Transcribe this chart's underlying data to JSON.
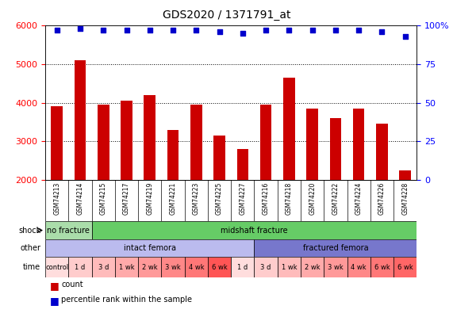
{
  "title": "GDS2020 / 1371791_at",
  "samples": [
    "GSM74213",
    "GSM74214",
    "GSM74215",
    "GSM74217",
    "GSM74219",
    "GSM74221",
    "GSM74223",
    "GSM74225",
    "GSM74227",
    "GSM74216",
    "GSM74218",
    "GSM74220",
    "GSM74222",
    "GSM74224",
    "GSM74226",
    "GSM74228"
  ],
  "bar_values": [
    3900,
    5100,
    3950,
    4050,
    4200,
    3300,
    3950,
    3150,
    2800,
    3950,
    4650,
    3850,
    3600,
    3850,
    3450,
    2250
  ],
  "percentile_values": [
    97,
    98,
    97,
    97,
    97,
    97,
    97,
    96,
    95,
    97,
    97,
    97,
    97,
    97,
    96,
    93
  ],
  "bar_color": "#cc0000",
  "percentile_color": "#0000cc",
  "ymin": 2000,
  "ymax": 6000,
  "yticks": [
    2000,
    3000,
    4000,
    5000,
    6000
  ],
  "y2ticks": [
    0,
    25,
    50,
    75,
    100
  ],
  "y2min": 0,
  "y2max": 100,
  "shock_labels": [
    {
      "text": "no fracture",
      "start": 0,
      "end": 2,
      "color": "#aaddaa"
    },
    {
      "text": "midshaft fracture",
      "start": 2,
      "end": 16,
      "color": "#66cc66"
    }
  ],
  "other_labels": [
    {
      "text": "intact femora",
      "start": 0,
      "end": 9,
      "color": "#bbbbee"
    },
    {
      "text": "fractured femora",
      "start": 9,
      "end": 16,
      "color": "#7777cc"
    }
  ],
  "time_labels": [
    {
      "text": "control",
      "start": 0,
      "end": 1,
      "color": "#ffdddd"
    },
    {
      "text": "1 d",
      "start": 1,
      "end": 2,
      "color": "#ffcccc"
    },
    {
      "text": "3 d",
      "start": 2,
      "end": 3,
      "color": "#ffbbbb"
    },
    {
      "text": "1 wk",
      "start": 3,
      "end": 4,
      "color": "#ffaaaa"
    },
    {
      "text": "2 wk",
      "start": 4,
      "end": 5,
      "color": "#ff9999"
    },
    {
      "text": "3 wk",
      "start": 5,
      "end": 6,
      "color": "#ff8888"
    },
    {
      "text": "4 wk",
      "start": 6,
      "end": 7,
      "color": "#ff7777"
    },
    {
      "text": "6 wk",
      "start": 7,
      "end": 8,
      "color": "#ff5555"
    },
    {
      "text": "1 d",
      "start": 8,
      "end": 9,
      "color": "#ffdddd"
    },
    {
      "text": "3 d",
      "start": 9,
      "end": 10,
      "color": "#ffcccc"
    },
    {
      "text": "1 wk",
      "start": 10,
      "end": 11,
      "color": "#ffbbbb"
    },
    {
      "text": "2 wk",
      "start": 11,
      "end": 12,
      "color": "#ffaaaa"
    },
    {
      "text": "3 wk",
      "start": 12,
      "end": 13,
      "color": "#ff9999"
    },
    {
      "text": "4 wk",
      "start": 13,
      "end": 14,
      "color": "#ff8888"
    },
    {
      "text": "6 wk",
      "start": 14,
      "end": 15,
      "color": "#ff7777"
    }
  ],
  "bg_color": "#ffffff",
  "sample_bg_color": "#e0e0e0"
}
